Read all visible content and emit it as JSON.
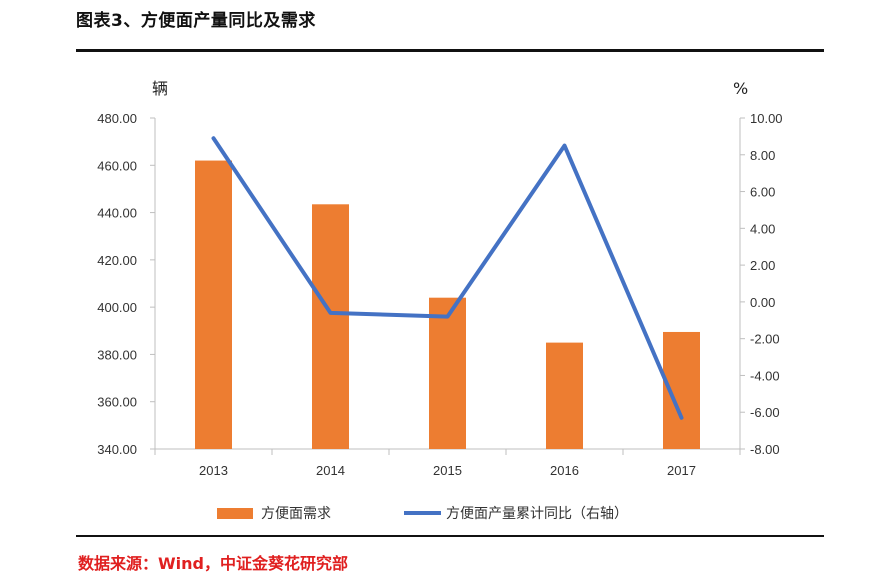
{
  "title": "图表3、方便面产量同比及需求",
  "source": "数据来源：Wind，中证金葵花研究部",
  "chart_data": {
    "type": "bar",
    "categories": [
      "2013",
      "2014",
      "2015",
      "2016",
      "2017"
    ],
    "series": [
      {
        "name": "方便面需求",
        "type": "bar",
        "axis": "left",
        "color": "#ED7D31",
        "values": [
          462.0,
          443.5,
          404.0,
          385.0,
          389.5
        ]
      },
      {
        "name": "方便面产量累计同比（右轴）",
        "type": "line",
        "axis": "right",
        "color": "#4472C4",
        "values": [
          8.9,
          -0.6,
          -0.8,
          8.5,
          -6.3
        ]
      }
    ],
    "left_axis": {
      "label": "辆",
      "ylim": [
        340,
        480
      ],
      "ticks": [
        "340.00",
        "360.00",
        "380.00",
        "400.00",
        "420.00",
        "440.00",
        "460.00",
        "480.00"
      ]
    },
    "right_axis": {
      "label": "%",
      "ylim": [
        -8,
        10
      ],
      "ticks": [
        "-8.00",
        "-6.00",
        "-4.00",
        "-2.00",
        "0.00",
        "2.00",
        "4.00",
        "6.00",
        "8.00",
        "10.00"
      ]
    },
    "grid": false,
    "legend_position": "bottom"
  }
}
